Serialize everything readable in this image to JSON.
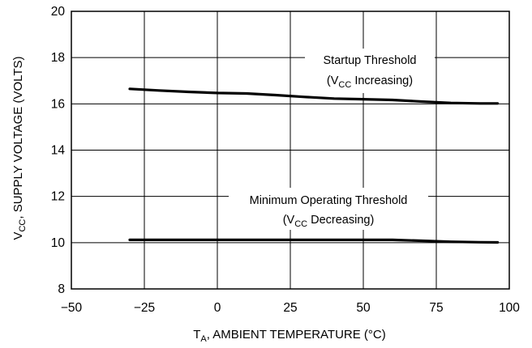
{
  "chart_data": {
    "type": "line",
    "xlabel": {
      "main": "T",
      "sub": "A",
      "rest": ", AMBIENT TEMPERATURE (°C)"
    },
    "ylabel": {
      "main": "V",
      "sub": "CC",
      "rest": ", SUPPLY VOLTAGE (VOLTS)"
    },
    "xlim": [
      -50,
      100
    ],
    "ylim": [
      8,
      20
    ],
    "xticks": [
      -50,
      -25,
      0,
      25,
      50,
      75,
      100
    ],
    "yticks": [
      8,
      10,
      12,
      14,
      16,
      18,
      20
    ],
    "xtick_labels": [
      "−50",
      "−25",
      "0",
      "25",
      "50",
      "75",
      "100"
    ],
    "ytick_labels": [
      "8",
      "10",
      "12",
      "14",
      "16",
      "18",
      "20"
    ],
    "grid": true,
    "series": [
      {
        "points": [
          [
            -30,
            16.65
          ],
          [
            -20,
            16.58
          ],
          [
            -10,
            16.52
          ],
          [
            0,
            16.47
          ],
          [
            10,
            16.45
          ],
          [
            20,
            16.38
          ],
          [
            30,
            16.3
          ],
          [
            40,
            16.23
          ],
          [
            50,
            16.2
          ],
          [
            60,
            16.17
          ],
          [
            70,
            16.1
          ],
          [
            80,
            16.04
          ],
          [
            90,
            16.02
          ],
          [
            96,
            16.02
          ]
        ],
        "annotation": {
          "line1": "Startup Threshold",
          "line2_pre": "(V",
          "line2_sub": "CC",
          "line2_post": " Increasing)"
        }
      },
      {
        "points": [
          [
            -30,
            10.12
          ],
          [
            -10,
            10.12
          ],
          [
            10,
            10.12
          ],
          [
            30,
            10.12
          ],
          [
            50,
            10.12
          ],
          [
            60,
            10.12
          ],
          [
            70,
            10.08
          ],
          [
            80,
            10.04
          ],
          [
            90,
            10.02
          ],
          [
            96,
            10.01
          ]
        ],
        "annotation": {
          "line1": "Minimum Operating Threshold",
          "line2_pre": "(V",
          "line2_sub": "CC",
          "line2_post": " Decreasing)"
        }
      }
    ]
  }
}
